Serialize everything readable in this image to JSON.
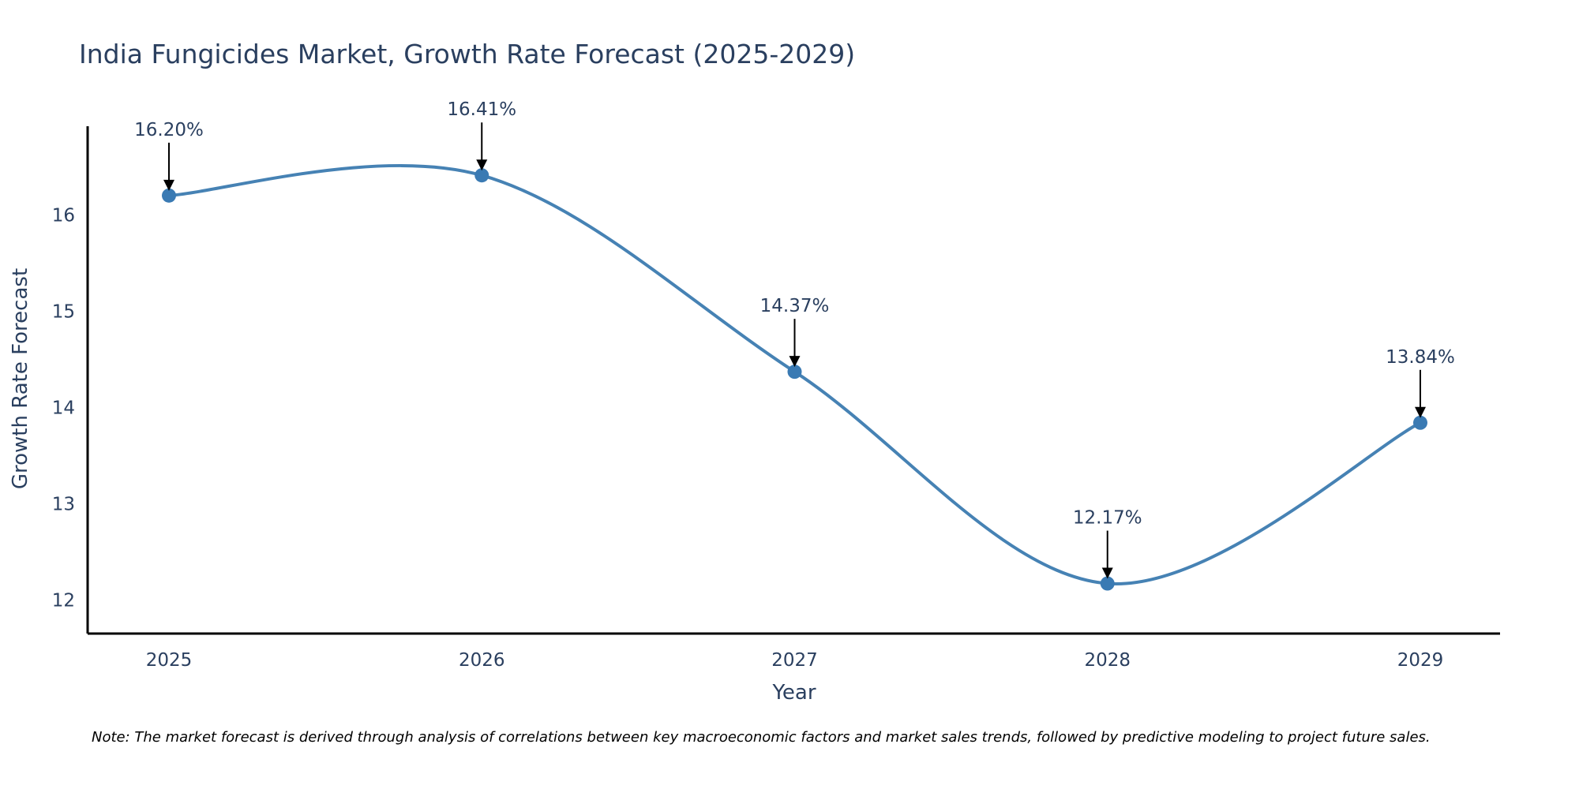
{
  "chart_data": {
    "type": "line",
    "title": "India Fungicides Market, Growth Rate Forecast (2025-2029)",
    "xlabel": "Year",
    "ylabel": "Growth Rate Forecast",
    "categories": [
      "2025",
      "2026",
      "2027",
      "2028",
      "2029"
    ],
    "values": [
      16.2,
      16.41,
      14.37,
      12.17,
      13.84
    ],
    "data_labels": [
      "16.20%",
      "16.41%",
      "14.37%",
      "12.17%",
      "13.84%"
    ],
    "y_ticks": [
      12,
      13,
      14,
      15,
      16
    ],
    "ylim": [
      11.65,
      16.92
    ],
    "grid": false,
    "line_shape": "spline",
    "note": "Note: The market forecast is derived through analysis of correlations between key macroeconomic factors and market sales trends, followed by predictive modeling to project future sales."
  },
  "colors": {
    "line": "#4682b4",
    "marker": "#3a7ab3",
    "text": "#2a3f5f",
    "axis": "#000000",
    "arrow": "#000000"
  }
}
